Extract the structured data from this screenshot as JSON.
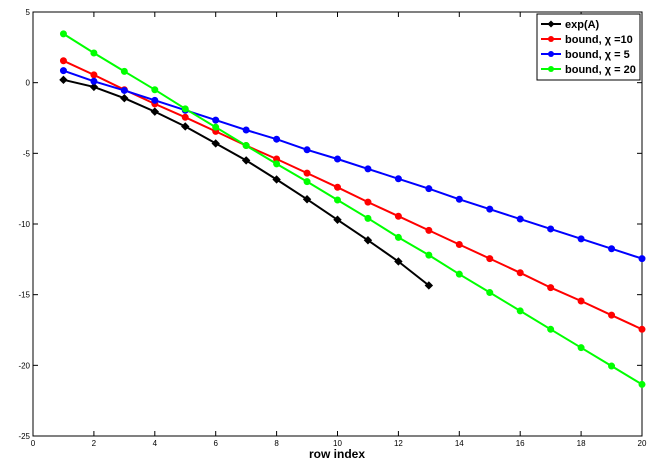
{
  "chart_data": {
    "type": "line",
    "title": "",
    "xlabel": "row  index",
    "ylabel": "",
    "xlim": [
      0,
      20
    ],
    "ylim": [
      -25,
      5
    ],
    "xticks": [
      0,
      2,
      4,
      6,
      8,
      10,
      12,
      14,
      16,
      18,
      20
    ],
    "yticks": [
      -25,
      -20,
      -15,
      -10,
      -5,
      0,
      5
    ],
    "grid": false,
    "legend_position": "top-right",
    "series": [
      {
        "name": "exp(A)",
        "color": "#000000",
        "marker": "diamond",
        "x": [
          1,
          2,
          3,
          4,
          5,
          6,
          7,
          8,
          9,
          10,
          11,
          12,
          13
        ],
        "y": [
          0.2,
          -0.3,
          -1.1,
          -2.05,
          -3.1,
          -4.3,
          -5.5,
          -6.85,
          -8.25,
          -9.7,
          -11.15,
          -12.65,
          -14.35
        ]
      },
      {
        "name": "bound, χ =10",
        "color": "#ff0000",
        "marker": "circle",
        "x": [
          1,
          2,
          3,
          4,
          5,
          6,
          7,
          8,
          9,
          10,
          11,
          12,
          13,
          14,
          15,
          16,
          17,
          18,
          19,
          20
        ],
        "y": [
          1.55,
          0.55,
          -0.5,
          -1.5,
          -2.45,
          -3.45,
          -4.45,
          -5.4,
          -6.4,
          -7.4,
          -8.45,
          -9.45,
          -10.45,
          -11.45,
          -12.45,
          -13.45,
          -14.5,
          -15.45,
          -16.45,
          -17.45
        ]
      },
      {
        "name": "bound, χ = 5",
        "color": "#0000ff",
        "marker": "circle",
        "x": [
          1,
          2,
          3,
          4,
          5,
          6,
          7,
          8,
          9,
          10,
          11,
          12,
          13,
          14,
          15,
          16,
          17,
          18,
          19,
          20
        ],
        "y": [
          0.85,
          0.1,
          -0.55,
          -1.25,
          -1.95,
          -2.65,
          -3.35,
          -4.0,
          -4.75,
          -5.4,
          -6.1,
          -6.8,
          -7.5,
          -8.25,
          -8.95,
          -9.65,
          -10.35,
          -11.05,
          -11.75,
          -12.45
        ]
      },
      {
        "name": "bound, χ = 20",
        "color": "#00ff00",
        "marker": "circle",
        "x": [
          1,
          2,
          3,
          4,
          5,
          6,
          7,
          8,
          9,
          10,
          11,
          12,
          13,
          14,
          15,
          16,
          17,
          18,
          19,
          20
        ],
        "y": [
          3.45,
          2.1,
          0.8,
          -0.5,
          -1.85,
          -3.15,
          -4.45,
          -5.75,
          -7.0,
          -8.3,
          -9.6,
          -10.95,
          -12.2,
          -13.55,
          -14.85,
          -16.15,
          -17.45,
          -18.75,
          -20.05,
          -21.35
        ]
      }
    ]
  }
}
